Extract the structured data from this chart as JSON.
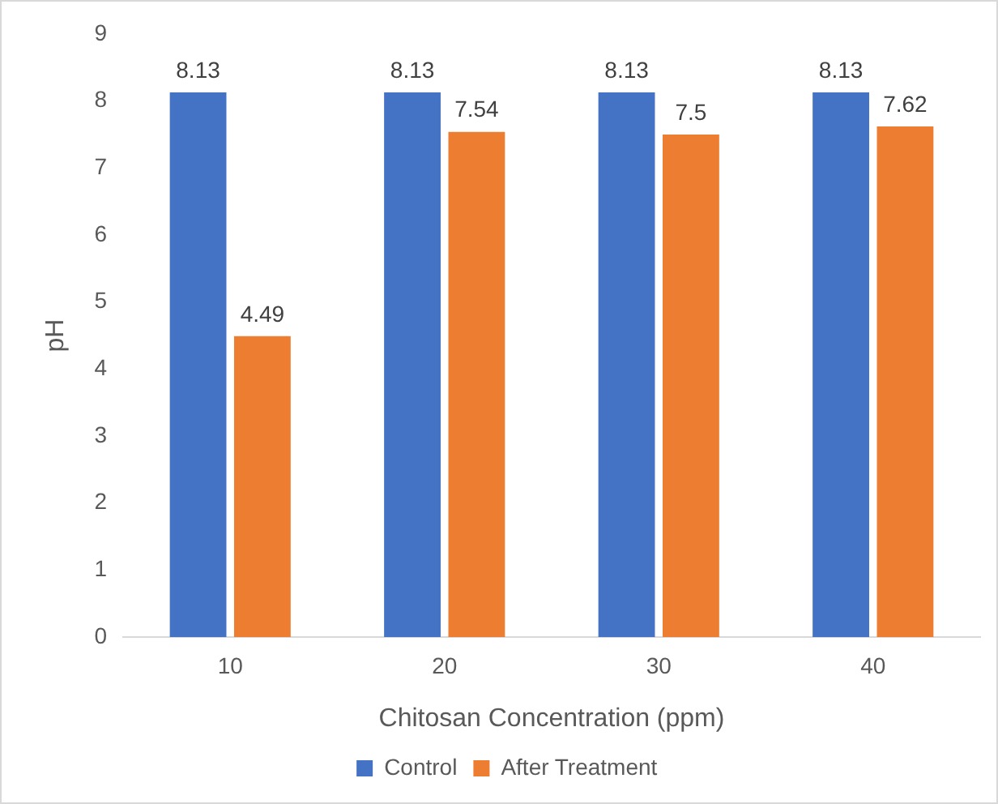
{
  "chart_data": {
    "type": "bar",
    "xlabel": "Chitosan Concentration (ppm)",
    "ylabel": "pH",
    "categories": [
      "10",
      "20",
      "30",
      "40"
    ],
    "series": [
      {
        "name": "Control",
        "color": "#4472c4",
        "values": [
          8.13,
          8.13,
          8.13,
          8.13
        ]
      },
      {
        "name": "After Treatment",
        "color": "#ed7d31",
        "values": [
          4.49,
          7.54,
          7.5,
          7.62
        ]
      }
    ],
    "ylim": [
      0,
      9
    ],
    "yticks": [
      0,
      1,
      2,
      3,
      4,
      5,
      6,
      7,
      8,
      9
    ],
    "grid": false,
    "legend": "bottom",
    "data_labels": true
  }
}
